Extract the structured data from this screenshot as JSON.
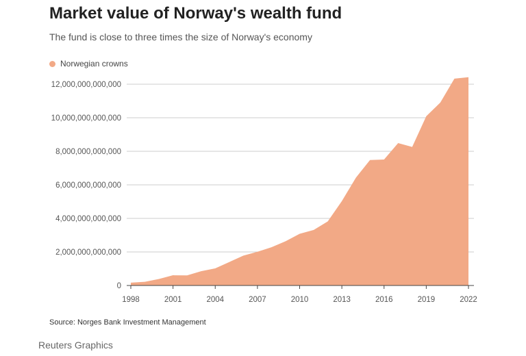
{
  "chart_data": {
    "type": "area",
    "title": "Market value of Norway's wealth fund",
    "subtitle": "The fund is close to three times the size of Norway's economy",
    "legend_placement": "top-left",
    "series": [
      {
        "name": "Norwegian crowns",
        "color": "#f2a986",
        "x": [
          1998,
          1999,
          2000,
          2001,
          2002,
          2003,
          2004,
          2005,
          2006,
          2007,
          2008,
          2009,
          2010,
          2011,
          2012,
          2013,
          2014,
          2015,
          2016,
          2017,
          2018,
          2019,
          2020,
          2021,
          2022
        ],
        "values": [
          170000000000,
          220000000000,
          390000000000,
          610000000000,
          600000000000,
          850000000000,
          1020000000000,
          1400000000000,
          1780000000000,
          2010000000000,
          2280000000000,
          2640000000000,
          3080000000000,
          3310000000000,
          3820000000000,
          5030000000000,
          6430000000000,
          7480000000000,
          7510000000000,
          8490000000000,
          8260000000000,
          10090000000000,
          10910000000000,
          12330000000000,
          12420000000000
        ]
      }
    ],
    "xticks": [
      "1998",
      "2001",
      "2004",
      "2007",
      "2010",
      "2013",
      "2016",
      "2019",
      "2022"
    ],
    "yticks": [
      "0",
      "2,000,000,000,000",
      "4,000,000,000,000",
      "6,000,000,000,000",
      "8,000,000,000,000",
      "10,000,000,000,000",
      "12,000,000,000,000"
    ],
    "xlim": [
      1998,
      2022
    ],
    "ylim": [
      0,
      12000000000000
    ],
    "grid": true,
    "xlabel": "",
    "ylabel": ""
  },
  "source": "Source: Norges Bank Investment Management",
  "credit": "Reuters Graphics",
  "colors": {
    "area": "#f2a986",
    "grid": "#cccccc",
    "axis": "#444444"
  }
}
